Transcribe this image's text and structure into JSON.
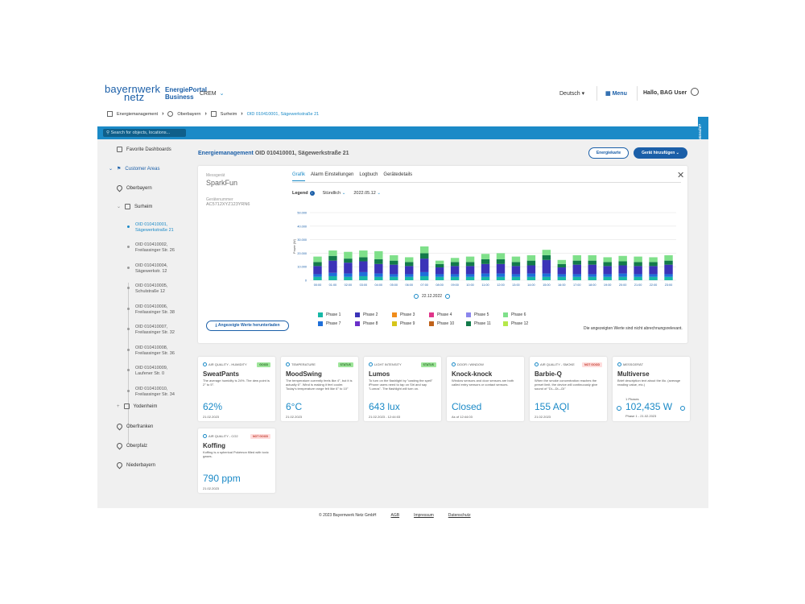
{
  "header": {
    "logo_line1": "bayernwerk",
    "logo_line2": "netz",
    "portal_line1": "EnergiePortal",
    "portal_line2": "Business",
    "crem": "CREM",
    "language": "Deutsch",
    "menu": "Menu",
    "hello": "Hallo, BAG User"
  },
  "breadcrumb": [
    "Energiemanagement",
    "Oberbayern",
    "Surheim",
    "OID 010410001, Sägewerkstraße 21"
  ],
  "search": {
    "placeholder": "Search for objects, locations..."
  },
  "feedback": "Feedback erwünscht?",
  "sidebar": {
    "favorite": "Favorite Dashboards",
    "customer_areas": "Customer Areas",
    "oberbayern": "Oberbayern",
    "surheim": "Surheim",
    "items": [
      {
        "l1": "OID 010410001,",
        "l2": "Sägewerkstraße 21"
      },
      {
        "l1": "OID 010410002,",
        "l2": "Freilassinger Str. 26"
      },
      {
        "l1": "OID 010410004,",
        "l2": "Sägewerkstr. 12"
      },
      {
        "l1": "OID 010410005,",
        "l2": "Schulstraße 12"
      },
      {
        "l1": "OID 010410006,",
        "l2": "Freilassinger Str. 38"
      },
      {
        "l1": "OID 010410007,",
        "l2": "Freilassinger Str. 32"
      },
      {
        "l1": "OID 010410008,",
        "l2": "Freilassinger Str. 36"
      },
      {
        "l1": "OID 010410009,",
        "l2": "Laufener Str. 0"
      },
      {
        "l1": "OID 010410010,",
        "l2": "Freilassinger Str. 34"
      }
    ],
    "yodenheim": "Yodenheim",
    "oberfranken": "Oberfranken",
    "oberpfalz": "Oberpfalz",
    "niederbayern": "Niederbayern"
  },
  "main": {
    "title": "Energiemanagement",
    "title_oid": "OID 010410001, Sägewerkstraße 21",
    "btn_map": "Energiekarte",
    "btn_add": "Gerät hinzufügen"
  },
  "device": {
    "label": "Messgerät",
    "name": "SparkFun",
    "num_label": "Gerätenummer",
    "num": "AC5712XYZ123YRN6",
    "download": "Angezeigte Werte herunterladen"
  },
  "tabs": [
    "Grafik",
    "Alarm Einstellungen",
    "Logbuch",
    "Gerätedetails"
  ],
  "controls": {
    "legend": "Legend",
    "interval": "Stündlich",
    "date": "2022.05.12"
  },
  "date_nav": "22.12.2022",
  "note": "Die angezeigten Werte sind nicht abrechnungsrelevant.",
  "colors": {
    "primary": "#1b5fa8",
    "accent": "#1b8ac7"
  },
  "chart_data": {
    "type": "bar",
    "stacked": true,
    "ylabel": "Power (W)",
    "ylim": [
      0,
      50000
    ],
    "yticks": [
      "0",
      "10.000",
      "20.000",
      "30.000",
      "40.000",
      "50.000"
    ],
    "categories": [
      "00:00",
      "01:00",
      "02:00",
      "03:00",
      "04:00",
      "05:00",
      "06:00",
      "07:00",
      "08:00",
      "09:00",
      "10:00",
      "11:00",
      "12:00",
      "13:00",
      "14:00",
      "15:00",
      "16:00",
      "17:00",
      "18:00",
      "19:00",
      "20:00",
      "21:00",
      "22:00",
      "23:00"
    ],
    "series": [
      {
        "name": "Phase 1",
        "color": "#17b8a6",
        "values": [
          2500,
          3000,
          2500,
          3000,
          2500,
          2500,
          2500,
          3000,
          2500,
          2500,
          2500,
          2500,
          2500,
          2500,
          2500,
          2500,
          2500,
          2500,
          2500,
          2500,
          2500,
          2500,
          2500,
          2500
        ]
      },
      {
        "name": "Phase 7",
        "color": "#1e6fd9",
        "values": [
          2000,
          2500,
          2500,
          3000,
          2500,
          2000,
          2000,
          3000,
          2000,
          2000,
          2000,
          2500,
          2500,
          2000,
          2500,
          2500,
          2000,
          2000,
          2000,
          2000,
          2500,
          2000,
          2000,
          2000
        ]
      },
      {
        "name": "Phase 2",
        "color": "#3b33b8",
        "values": [
          6000,
          9000,
          8000,
          8000,
          7000,
          7000,
          6000,
          10000,
          5000,
          6000,
          6000,
          7000,
          7000,
          6000,
          6000,
          10000,
          5000,
          7000,
          7000,
          6000,
          6000,
          6000,
          6000,
          7000
        ]
      },
      {
        "name": "Phase 11",
        "color": "#127a4a",
        "values": [
          3000,
          3500,
          3000,
          3000,
          3500,
          3000,
          3000,
          4000,
          2500,
          3000,
          3000,
          3500,
          3500,
          3000,
          3500,
          3500,
          2500,
          3000,
          3000,
          3000,
          3000,
          3000,
          3000,
          3000
        ]
      },
      {
        "name": "Phase 6",
        "color": "#7fe08a",
        "values": [
          4000,
          4000,
          5000,
          5000,
          6000,
          4000,
          3500,
          5000,
          2500,
          3000,
          4000,
          4000,
          4500,
          4000,
          4000,
          4000,
          3000,
          4000,
          4000,
          3500,
          4000,
          4000,
          3500,
          4000
        ]
      }
    ]
  },
  "legend": [
    {
      "name": "Phase 1",
      "color": "#17b8a6"
    },
    {
      "name": "Phase 2",
      "color": "#3b33b8"
    },
    {
      "name": "Phase 3",
      "color": "#f08c1b"
    },
    {
      "name": "Phase 4",
      "color": "#e0358a"
    },
    {
      "name": "Phase 5",
      "color": "#8b86ec"
    },
    {
      "name": "Phase 6",
      "color": "#7fe08a"
    },
    {
      "name": "Phase 7",
      "color": "#1e6fd9"
    },
    {
      "name": "Phase 8",
      "color": "#6a2fc9"
    },
    {
      "name": "Phase 9",
      "color": "#d6c51a"
    },
    {
      "name": "Phase 10",
      "color": "#c0621b"
    },
    {
      "name": "Phase 11",
      "color": "#127a4a"
    },
    {
      "name": "Phase 12",
      "color": "#b5e84a"
    }
  ],
  "cards": [
    {
      "cat": "AIR QUALITY - HUMIDITY",
      "badge": "GOOD",
      "name": "SweatPants",
      "desc": "The average humidity is 24%. The dew point is 2° to 5°.",
      "value": "62%",
      "date": "21.02.2023"
    },
    {
      "cat": "TEMPERATURE",
      "badge": "STATUS",
      "name": "MoodSwing",
      "desc": "The temperature currently feels like 4°, but it is actually 6°. Wind is making it feel cooler. Today's temperature range felt like 6° to 10°",
      "value": "6°C",
      "date": "21.02.2023"
    },
    {
      "cat": "LIGHT INTENSITY",
      "badge": "STATUS",
      "name": "Lumos",
      "desc": "To turn on the flashlight by \"casting the spell\" iPhone users need to tap on Siri and say \"Lumos\". The flashlight will turn on.",
      "value": "643 lux",
      "date": "21.02.2023 - 12:44:03"
    },
    {
      "cat": "DOOR / WINDOW",
      "name": "Knock-knock",
      "desc": "Window sensors and door sensors are both called entry sensors or contact sensors.",
      "value": "Closed",
      "date": "As of 12:44:03"
    },
    {
      "cat": "AIR QUALITY - SMOKE",
      "badge": "NOT GOOD",
      "name": "Barbie-Q",
      "desc": "When the smoke concentration reaches the preset limit, the device will continuously give sound of \"Di—Di—Di\"",
      "value": "155 AQI",
      "date": "21.02.2023"
    },
    {
      "cat": "MESSGERÄT",
      "name": "Multiverse",
      "desc": "Brief description text about the illo. (average reading value, etc.)",
      "phases": "1 Phases",
      "value": "102,435 W",
      "date": "Phase 1 - 21.02.2023"
    },
    {
      "cat": "AIR QUALITY - CO2",
      "badge": "NOT GOOD",
      "name": "Koffing",
      "desc": "Koffing is a spherical Pokémon filled with toxic gases.",
      "value": "790 ppm",
      "date": "21.02.2023"
    }
  ],
  "footer": {
    "copy": "© 2023 Bayernwerk Netz GmbH",
    "agb": "AGB",
    "impressum": "Impressum",
    "datenschutz": "Datenschutz"
  }
}
